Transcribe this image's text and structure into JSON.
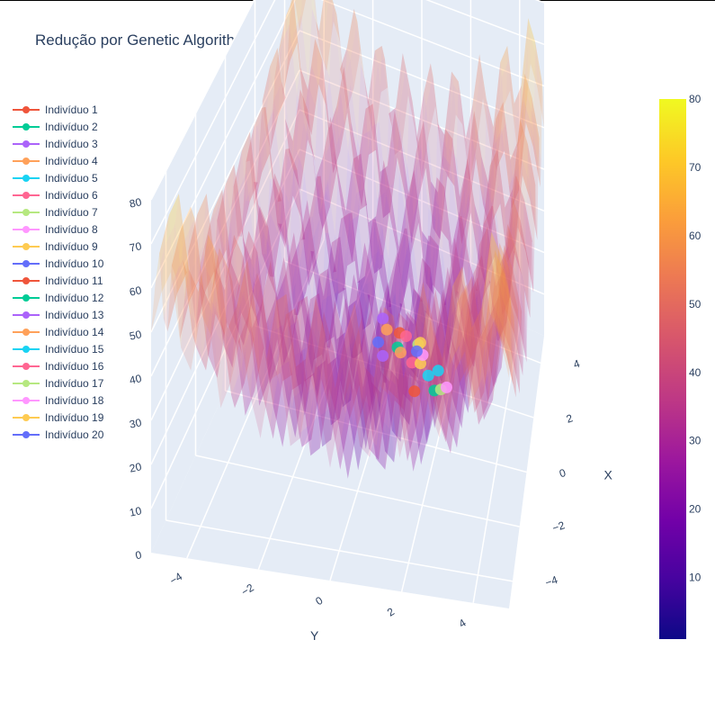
{
  "title": "Redução por Genetic Algorithm",
  "chart_data": {
    "type": "surface3d+scatter3d",
    "title": "Redução por Genetic Algorithm",
    "surface": {
      "function": "Rastrigin",
      "x_range": [
        -5,
        5
      ],
      "y_range": [
        -5,
        5
      ],
      "z_range": [
        0,
        80
      ],
      "opacity": "semi-transparent",
      "colorscale": "plasma"
    },
    "axes": {
      "x": {
        "label": "X",
        "ticks": [
          "−4",
          "−2",
          "0",
          "2",
          "4"
        ]
      },
      "y": {
        "label": "Y",
        "ticks": [
          "−4",
          "−2",
          "0",
          "2",
          "4"
        ]
      },
      "z": {
        "label": "",
        "ticks": [
          "0",
          "10",
          "20",
          "30",
          "40",
          "50",
          "60",
          "70",
          "80"
        ]
      }
    },
    "colorbar": {
      "range": [
        1,
        80
      ],
      "ticks": [
        "10",
        "20",
        "30",
        "40",
        "50",
        "60",
        "70",
        "80"
      ]
    },
    "legend_placement": "left",
    "series": [
      {
        "name": "Indivíduo 1",
        "color": "#EF553B",
        "x": -0.9,
        "y": 1.5,
        "z": 18
      },
      {
        "name": "Indivíduo 2",
        "color": "#00CC96",
        "x": 1.0,
        "y": 1.7,
        "z": 6
      },
      {
        "name": "Indivíduo 3",
        "color": "#AB63FA",
        "x": 0.1,
        "y": 0.2,
        "z": 26
      },
      {
        "name": "Indivíduo 4",
        "color": "#FFA15A",
        "x": 1.8,
        "y": -0.2,
        "z": 11
      },
      {
        "name": "Indivíduo 5",
        "color": "#19D3F3",
        "x": -0.7,
        "y": 1.9,
        "z": 21
      },
      {
        "name": "Indivíduo 6",
        "color": "#FF6692",
        "x": -0.4,
        "y": 1.3,
        "z": 21
      },
      {
        "name": "Indivíduo 7",
        "color": "#B6E880",
        "x": 1.1,
        "y": 1.9,
        "z": 6
      },
      {
        "name": "Indivíduo 8",
        "color": "#FF97FF",
        "x": 1.5,
        "y": 2.0,
        "z": 4
      },
      {
        "name": "Indivíduo 9",
        "color": "#FECB52",
        "x": -0.5,
        "y": 1.6,
        "z": 22
      },
      {
        "name": "Indivíduo 10",
        "color": "#636EFA",
        "x": 1.2,
        "y": -0.3,
        "z": 12
      },
      {
        "name": "Indivíduo 11",
        "color": "#EF553B",
        "x": -2.0,
        "y": 1.3,
        "z": 38
      },
      {
        "name": "Indivíduo 12",
        "color": "#00CC96",
        "x": -0.3,
        "y": 0.8,
        "z": 23
      },
      {
        "name": "Indivíduo 13",
        "color": "#AB63FA",
        "x": -1.7,
        "y": 0.7,
        "z": 30
      },
      {
        "name": "Indivíduo 14",
        "color": "#FFA15A",
        "x": -0.3,
        "y": 0.9,
        "z": 22
      },
      {
        "name": "Indivíduo 15",
        "color": "#19D3F3",
        "x": -0.6,
        "y": 2.2,
        "z": 22
      },
      {
        "name": "Indivíduo 16",
        "color": "#FF6692",
        "x": 0.0,
        "y": 1.0,
        "z": 24
      },
      {
        "name": "Indivíduo 17",
        "color": "#B6E880",
        "x": 0.4,
        "y": 1.3,
        "z": 20
      },
      {
        "name": "Indivíduo 18",
        "color": "#FF97FF",
        "x": -0.2,
        "y": 1.6,
        "z": 22
      },
      {
        "name": "Indivíduo 19",
        "color": "#FECB52",
        "x": -0.1,
        "y": 1.5,
        "z": 24
      },
      {
        "name": "Indivíduo 20",
        "color": "#636EFA",
        "x": -1.0,
        "y": 1.6,
        "z": 28
      }
    ]
  }
}
